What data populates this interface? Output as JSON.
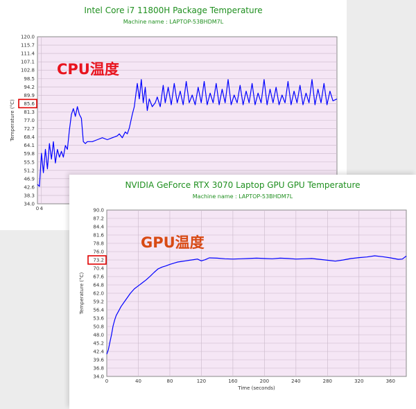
{
  "chart_data": [
    {
      "type": "line",
      "title": "Intel Core i7 11800H Package Temperature",
      "subtitle": "Machine name : LAPTOP-53BHDM7L",
      "ylabel": "Temperature (°C)",
      "xlabel": "",
      "ylim": [
        34.0,
        120.0
      ],
      "xlim": [
        0,
        300
      ],
      "yticks": [
        "34.0",
        "38.3",
        "42.6",
        "46.9",
        "51.2",
        "55.5",
        "59.8",
        "64.1",
        "68.4",
        "72.7",
        "77.0",
        "81.3",
        "85.6",
        "89.9",
        "94.2",
        "98.5",
        "102.8",
        "107.1",
        "111.4",
        "115.7",
        "120.0"
      ],
      "xticks_visible": [
        "0",
        "4"
      ],
      "highlight_value": "85.6",
      "overlay_label": "CPU温度",
      "series": [
        {
          "values_summary": "starts ~43 C at t=0, rises through 55-65 C during first 35 s, ~78-84 C briefly near t=35-45 s, ~66-72 C from t=45-95 s, then ~84-100 C (avg ~86 C) until t=300 s",
          "points": [
            [
              0,
              44
            ],
            [
              2,
              43
            ],
            [
              4,
              60
            ],
            [
              6,
              50
            ],
            [
              8,
              62
            ],
            [
              10,
              52
            ],
            [
              12,
              65
            ],
            [
              14,
              57
            ],
            [
              16,
              66
            ],
            [
              18,
              55
            ],
            [
              20,
              62
            ],
            [
              22,
              58
            ],
            [
              24,
              61
            ],
            [
              26,
              58
            ],
            [
              28,
              64
            ],
            [
              30,
              62
            ],
            [
              32,
              72
            ],
            [
              34,
              80
            ],
            [
              36,
              83
            ],
            [
              38,
              79
            ],
            [
              40,
              84
            ],
            [
              42,
              80
            ],
            [
              44,
              78
            ],
            [
              46,
              66
            ],
            [
              48,
              65
            ],
            [
              50,
              66
            ],
            [
              55,
              66
            ],
            [
              60,
              67
            ],
            [
              65,
              68
            ],
            [
              70,
              67
            ],
            [
              75,
              68
            ],
            [
              80,
              69
            ],
            [
              82,
              70
            ],
            [
              85,
              68
            ],
            [
              88,
              71
            ],
            [
              90,
              70
            ],
            [
              92,
              73
            ],
            [
              95,
              80
            ],
            [
              97,
              84
            ],
            [
              100,
              96
            ],
            [
              102,
              88
            ],
            [
              104,
              98
            ],
            [
              106,
              86
            ],
            [
              108,
              94
            ],
            [
              110,
              82
            ],
            [
              112,
              88
            ],
            [
              115,
              84
            ],
            [
              118,
              86
            ],
            [
              120,
              89
            ],
            [
              123,
              84
            ],
            [
              126,
              95
            ],
            [
              128,
              86
            ],
            [
              131,
              94
            ],
            [
              134,
              85
            ],
            [
              137,
              96
            ],
            [
              140,
              86
            ],
            [
              143,
              92
            ],
            [
              146,
              85
            ],
            [
              149,
              97
            ],
            [
              152,
              86
            ],
            [
              155,
              90
            ],
            [
              158,
              85
            ],
            [
              161,
              94
            ],
            [
              164,
              86
            ],
            [
              167,
              97
            ],
            [
              170,
              85
            ],
            [
              173,
              91
            ],
            [
              176,
              86
            ],
            [
              179,
              96
            ],
            [
              182,
              85
            ],
            [
              185,
              93
            ],
            [
              188,
              86
            ],
            [
              191,
              98
            ],
            [
              194,
              85
            ],
            [
              197,
              90
            ],
            [
              200,
              86
            ],
            [
              203,
              95
            ],
            [
              206,
              85
            ],
            [
              209,
              92
            ],
            [
              212,
              86
            ],
            [
              215,
              96
            ],
            [
              218,
              85
            ],
            [
              221,
              91
            ],
            [
              224,
              86
            ],
            [
              227,
              98
            ],
            [
              230,
              85
            ],
            [
              233,
              93
            ],
            [
              236,
              86
            ],
            [
              239,
              94
            ],
            [
              242,
              85
            ],
            [
              245,
              90
            ],
            [
              248,
              86
            ],
            [
              251,
              97
            ],
            [
              254,
              85
            ],
            [
              257,
              92
            ],
            [
              260,
              86
            ],
            [
              263,
              95
            ],
            [
              266,
              85
            ],
            [
              269,
              91
            ],
            [
              272,
              86
            ],
            [
              275,
              98
            ],
            [
              278,
              85
            ],
            [
              281,
              93
            ],
            [
              284,
              86
            ],
            [
              287,
              96
            ],
            [
              290,
              85
            ],
            [
              293,
              92
            ],
            [
              296,
              87
            ],
            [
              300,
              88
            ]
          ]
        }
      ],
      "color_line": "#0000ff",
      "color_plot_bg": "#f5e6f5"
    },
    {
      "type": "line",
      "title": "NVIDIA GeForce RTX 3070 Laptop GPU GPU Temperature",
      "subtitle": "Machine name : LAPTOP-53BHDM7L",
      "ylabel": "Temperature (°C)",
      "xlabel": "Time (seconds)",
      "ylim": [
        34.0,
        90.0
      ],
      "xlim": [
        0,
        380
      ],
      "yticks": [
        "34.0",
        "36.8",
        "39.6",
        "42.4",
        "45.2",
        "48.0",
        "50.8",
        "53.6",
        "56.4",
        "59.2",
        "62.0",
        "64.8",
        "67.6",
        "70.4",
        "73.2",
        "76.0",
        "78.8",
        "81.6",
        "84.4",
        "87.2",
        "90.0"
      ],
      "xticks": [
        "0",
        "40",
        "80",
        "120",
        "160",
        "200",
        "240",
        "280",
        "320",
        "360"
      ],
      "highlight_value": "73.2",
      "overlay_label": "GPU温度",
      "series": [
        {
          "points": [
            [
              0,
              41.5
            ],
            [
              2,
              43
            ],
            [
              4,
              45.5
            ],
            [
              6,
              48
            ],
            [
              8,
              51
            ],
            [
              10,
              53
            ],
            [
              12,
              54.5
            ],
            [
              15,
              56
            ],
            [
              18,
              57.5
            ],
            [
              22,
              59
            ],
            [
              26,
              60.5
            ],
            [
              30,
              62
            ],
            [
              35,
              63.5
            ],
            [
              40,
              64.5
            ],
            [
              45,
              65.5
            ],
            [
              50,
              66.5
            ],
            [
              55,
              67.7
            ],
            [
              60,
              69
            ],
            [
              65,
              70.2
            ],
            [
              70,
              70.8
            ],
            [
              75,
              71.2
            ],
            [
              80,
              71.7
            ],
            [
              85,
              72.1
            ],
            [
              90,
              72.5
            ],
            [
              95,
              72.7
            ],
            [
              100,
              72.9
            ],
            [
              105,
              73.1
            ],
            [
              110,
              73.3
            ],
            [
              115,
              73.5
            ],
            [
              120,
              72.9
            ],
            [
              125,
              73.3
            ],
            [
              130,
              73.9
            ],
            [
              140,
              73.8
            ],
            [
              150,
              73.6
            ],
            [
              160,
              73.5
            ],
            [
              170,
              73.6
            ],
            [
              180,
              73.7
            ],
            [
              190,
              73.8
            ],
            [
              200,
              73.7
            ],
            [
              210,
              73.6
            ],
            [
              220,
              73.8
            ],
            [
              230,
              73.7
            ],
            [
              240,
              73.5
            ],
            [
              250,
              73.6
            ],
            [
              260,
              73.7
            ],
            [
              270,
              73.4
            ],
            [
              280,
              73.1
            ],
            [
              290,
              72.8
            ],
            [
              300,
              73.2
            ],
            [
              310,
              73.7
            ],
            [
              320,
              74.0
            ],
            [
              330,
              74.2
            ],
            [
              340,
              74.6
            ],
            [
              350,
              74.3
            ],
            [
              360,
              73.9
            ],
            [
              370,
              73.4
            ],
            [
              375,
              73.5
            ],
            [
              380,
              74.5
            ]
          ]
        }
      ],
      "color_line": "#0000ff",
      "color_plot_bg": "#f5e6f5"
    }
  ],
  "colors": {
    "title_green": "#1f8f1f",
    "highlight_red": "#e00000",
    "cpu_label_red": "#e8141e",
    "gpu_label_red": "#d84a14"
  }
}
